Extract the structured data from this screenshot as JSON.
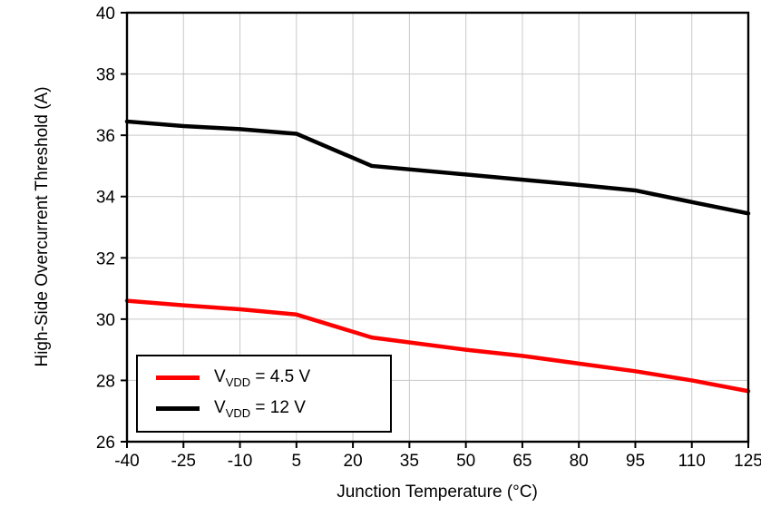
{
  "chart_data": {
    "type": "line",
    "title": "",
    "xlabel": "Junction Temperature (°C)",
    "ylabel": "High-Side Overcurrent Threshold (A)",
    "xlim": [
      -40,
      125
    ],
    "ylim": [
      26,
      40
    ],
    "xticks": [
      -40,
      -25,
      -10,
      5,
      20,
      35,
      50,
      65,
      80,
      95,
      110,
      125
    ],
    "yticks": [
      26,
      28,
      30,
      32,
      34,
      36,
      38,
      40
    ],
    "grid": true,
    "grid_color": "#c9c9c9",
    "frame_color": "#000000",
    "legend_position": "bottom-left",
    "x": [
      -40,
      -25,
      -10,
      5,
      25,
      50,
      65,
      80,
      95,
      110,
      125
    ],
    "series": [
      {
        "name": "VVDD = 4.5 V",
        "color": "#ff0000",
        "legend": {
          "main": "V",
          "sub": "VDD",
          "rest": " = 4.5 V"
        },
        "values": [
          30.6,
          30.45,
          30.32,
          30.15,
          29.4,
          29.0,
          28.8,
          28.55,
          28.3,
          28.0,
          27.65
        ]
      },
      {
        "name": "VVDD = 12 V",
        "color": "#000000",
        "legend": {
          "main": "V",
          "sub": "VDD",
          "rest": " = 12 V"
        },
        "values": [
          36.45,
          36.3,
          36.2,
          36.05,
          35.0,
          34.72,
          34.55,
          34.38,
          34.2,
          33.82,
          33.45
        ]
      }
    ]
  }
}
